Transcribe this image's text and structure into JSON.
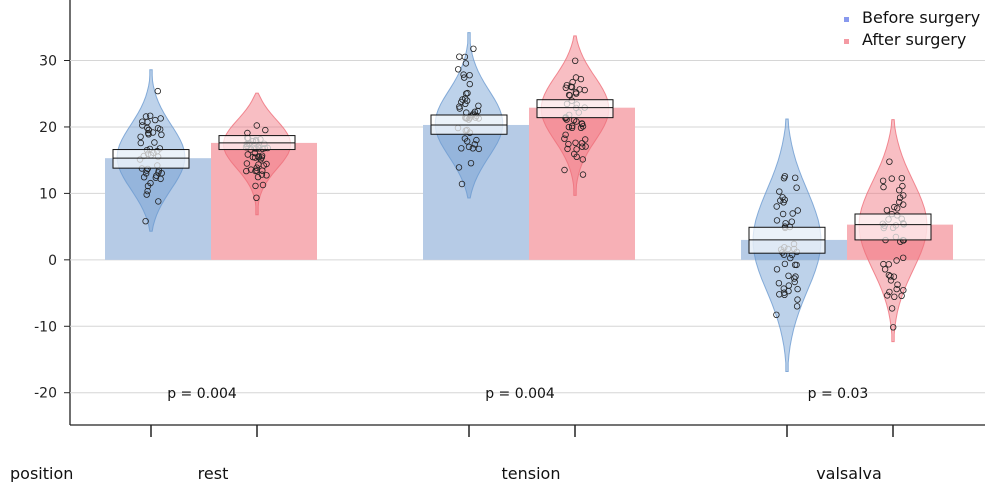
{
  "chart_data": {
    "type": "bar",
    "x_title": "position",
    "categories": [
      "rest",
      "tension",
      "valsalva"
    ],
    "series": [
      {
        "name": "Before surgery",
        "color": "#b6cbe6",
        "violin_color": "#6d9bd1",
        "marker_color": "#8899ee",
        "values": [
          15.3,
          20.3,
          3.0
        ],
        "ci": [
          [
            13.8,
            16.6
          ],
          [
            18.9,
            21.8
          ],
          [
            1.0,
            4.9
          ]
        ],
        "range": [
          [
            4.3,
            28.6
          ],
          [
            9.3,
            34.2
          ],
          [
            -16.8,
            21.2
          ]
        ]
      },
      {
        "name": "After surgery",
        "color": "#f7b0b6",
        "violin_color": "#ef6f7b",
        "marker_color": "#f49aa3",
        "values": [
          17.6,
          22.9,
          5.3
        ],
        "ci": [
          [
            16.6,
            18.7
          ],
          [
            21.4,
            24.1
          ],
          [
            3.0,
            6.9
          ]
        ],
        "range": [
          [
            6.8,
            25.1
          ],
          [
            9.7,
            33.7
          ],
          [
            -12.3,
            21.1
          ]
        ]
      }
    ],
    "annotations": [
      "p = 0.004",
      "p = 0.004",
      "p = 0.03"
    ],
    "y_ticks": [
      30,
      20,
      10,
      0,
      -10,
      -20
    ],
    "ylim": [
      -22.3,
      37.0
    ],
    "grid": true,
    "legend": "top-right"
  }
}
